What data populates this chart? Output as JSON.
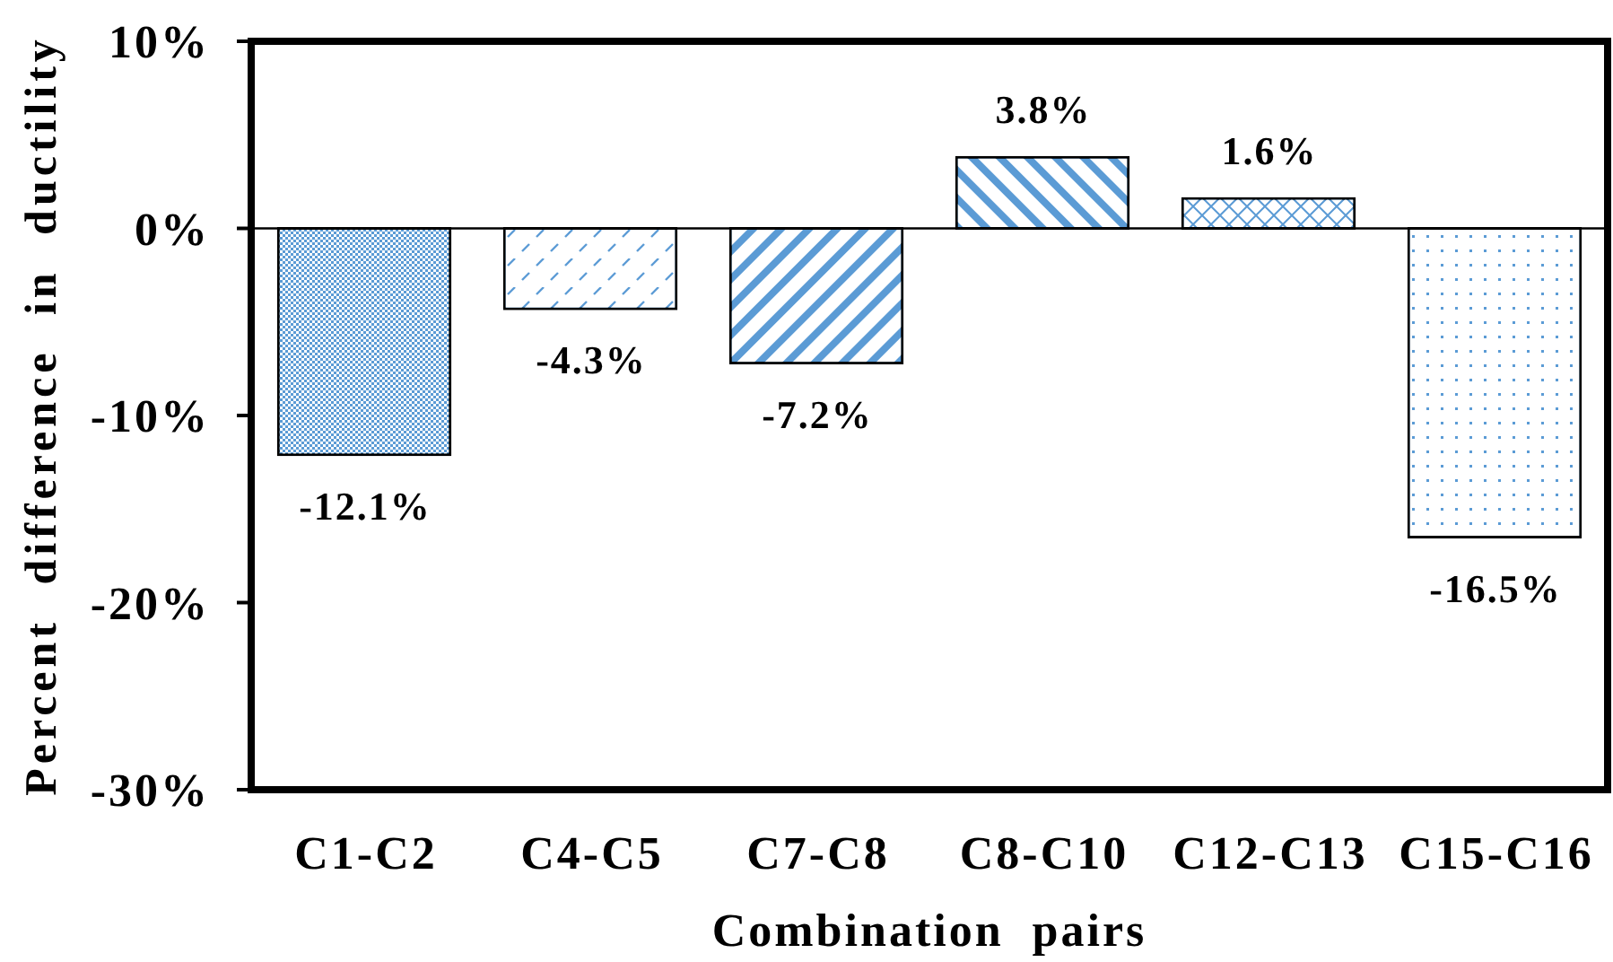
{
  "chart_data": {
    "type": "bar",
    "xlabel": "Combination pairs",
    "ylabel": "Percent difference in ductility",
    "categories": [
      "C1-C2",
      "C4-C5",
      "C7-C8",
      "C8-C10",
      "C12-C13",
      "C15-C16"
    ],
    "values": [
      -12.1,
      -4.3,
      -7.2,
      3.8,
      1.6,
      -16.5
    ],
    "colors": [
      "#5b9bd5",
      "#5b9bd5",
      "#5b9bd5",
      "#5b9bd5",
      "#5b9bd5",
      "#5b9bd5"
    ],
    "value_labels": [
      "-12.1%",
      "-4.3%",
      "-7.2%",
      "3.8%",
      "1.6%",
      "-16.5%"
    ],
    "ylim": [
      -30,
      10
    ],
    "yticks": [
      {
        "value": -30,
        "label": "-30%"
      },
      {
        "value": -20,
        "label": "-20%"
      },
      {
        "value": -10,
        "label": "-10%"
      },
      {
        "value": 0,
        "label": "0%"
      },
      {
        "value": 10,
        "label": "10%"
      }
    ]
  }
}
